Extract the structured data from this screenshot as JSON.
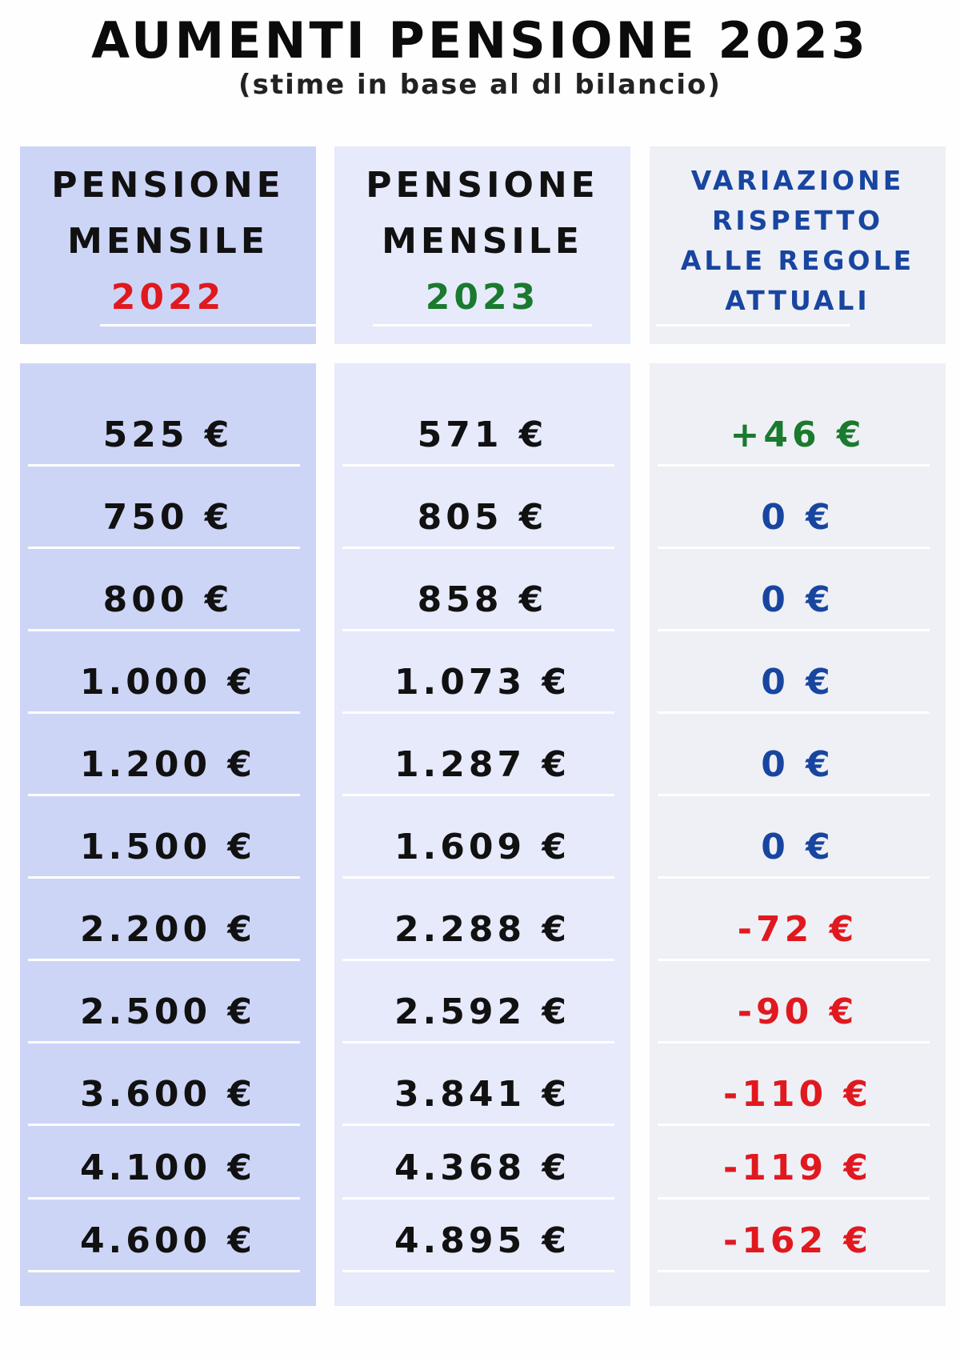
{
  "title": "AUMENTI PENSIONE 2023",
  "subtitle": "(stime in base al dl bilancio)",
  "headers": [
    {
      "line1": "PENSIONE",
      "line2": "MENSILE",
      "year": "2022",
      "year_color": "#e0191f"
    },
    {
      "line1": "PENSIONE",
      "line2": "MENSILE",
      "year": "2023",
      "year_color": "#1a7a2e"
    },
    {
      "lines": [
        "VARIAZIONE",
        "RISPETTO",
        "ALLE REGOLE",
        "ATTUALI"
      ]
    }
  ],
  "rows": [
    {
      "p2022": "525 €",
      "p2023": "571 €",
      "variation": "+46 €",
      "sign": "pos"
    },
    {
      "p2022": "750 €",
      "p2023": "805 €",
      "variation": "0 €",
      "sign": "zero"
    },
    {
      "p2022": "800 €",
      "p2023": "858 €",
      "variation": "0 €",
      "sign": "zero"
    },
    {
      "p2022": "1.000 €",
      "p2023": "1.073 €",
      "variation": "0 €",
      "sign": "zero"
    },
    {
      "p2022": "1.200 €",
      "p2023": "1.287 €",
      "variation": "0 €",
      "sign": "zero"
    },
    {
      "p2022": "1.500 €",
      "p2023": "1.609 €",
      "variation": "0 €",
      "sign": "zero"
    },
    {
      "p2022": "2.200 €",
      "p2023": "2.288 €",
      "variation": "-72 €",
      "sign": "neg"
    },
    {
      "p2022": "2.500 €",
      "p2023": "2.592 €",
      "variation": "-90 €",
      "sign": "neg"
    },
    {
      "p2022": "3.600 €",
      "p2023": "3.841 €",
      "variation": "-110 €",
      "sign": "neg"
    },
    {
      "p2022": "4.100 €",
      "p2023": "4.368 €",
      "variation": "-119 €",
      "sign": "neg"
    },
    {
      "p2022": "4.600 €",
      "p2023": "4.895 €",
      "variation": "-162 €",
      "sign": "neg"
    }
  ],
  "colors": {
    "positive": "#1a7a2e",
    "zero": "#1845a0",
    "negative": "#e0191f",
    "col1_bg": "#cdd5f7",
    "col2_bg": "#e6eafb",
    "col3_bg": "#eef0f6"
  }
}
